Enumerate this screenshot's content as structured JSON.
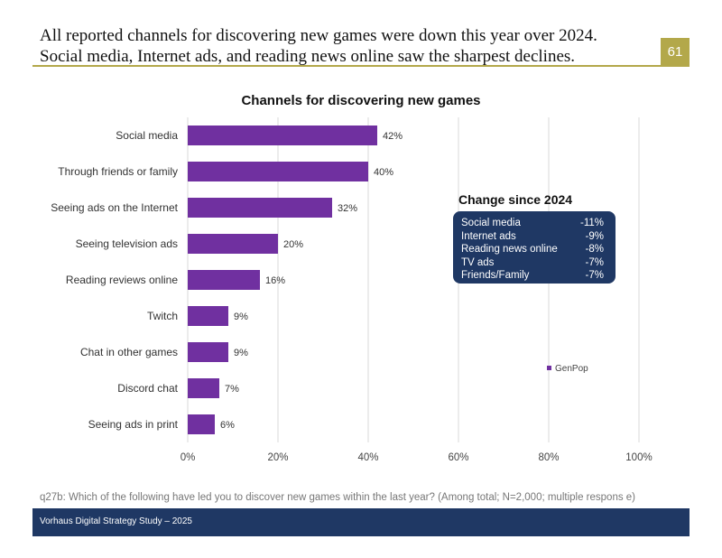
{
  "header": {
    "headline_line1": "All reported channels for discovering new games were down this year over 2024.",
    "headline_line2": "Social media, Internet ads, and reading news online saw the sharpest declines.",
    "page_number": "61",
    "accent_color": "#b3a84a"
  },
  "chart_data": {
    "type": "bar",
    "orientation": "horizontal",
    "title": "Channels for discovering new games",
    "categories": [
      "Social media",
      "Through friends or family",
      "Seeing ads on the Internet",
      "Seeing television ads",
      "Reading reviews online",
      "Twitch",
      "Chat in other games",
      "Discord chat",
      "Seeing ads in print"
    ],
    "series": [
      {
        "name": "GenPop",
        "values": [
          42,
          40,
          32,
          20,
          16,
          9,
          9,
          7,
          6
        ],
        "color": "#7030a0"
      }
    ],
    "value_labels": [
      "42%",
      "40%",
      "32%",
      "20%",
      "16%",
      "9%",
      "9%",
      "7%",
      "6%"
    ],
    "xlim": [
      0,
      100
    ],
    "xticks": [
      0,
      20,
      40,
      60,
      80,
      100
    ],
    "xtick_labels": [
      "0%",
      "20%",
      "40%",
      "60%",
      "80%",
      "100%"
    ],
    "grid": true,
    "legend_position": "right"
  },
  "change_panel": {
    "title": "Change since 2024",
    "rows": [
      {
        "label": "Social media",
        "value": "-11%"
      },
      {
        "label": "Internet ads",
        "value": "-9%"
      },
      {
        "label": "Reading news online",
        "value": "-8%"
      },
      {
        "label": "TV ads",
        "value": "-7%"
      },
      {
        "label": "Friends/Family",
        "value": "-7%"
      }
    ],
    "color": "#1f3864"
  },
  "footnote": "q27b: Which of the following have led you to discover new games within the last year? (Among total; N=2,000; multiple respons e)",
  "footer": {
    "text": "Vorhaus Digital Strategy Study – 2025"
  }
}
